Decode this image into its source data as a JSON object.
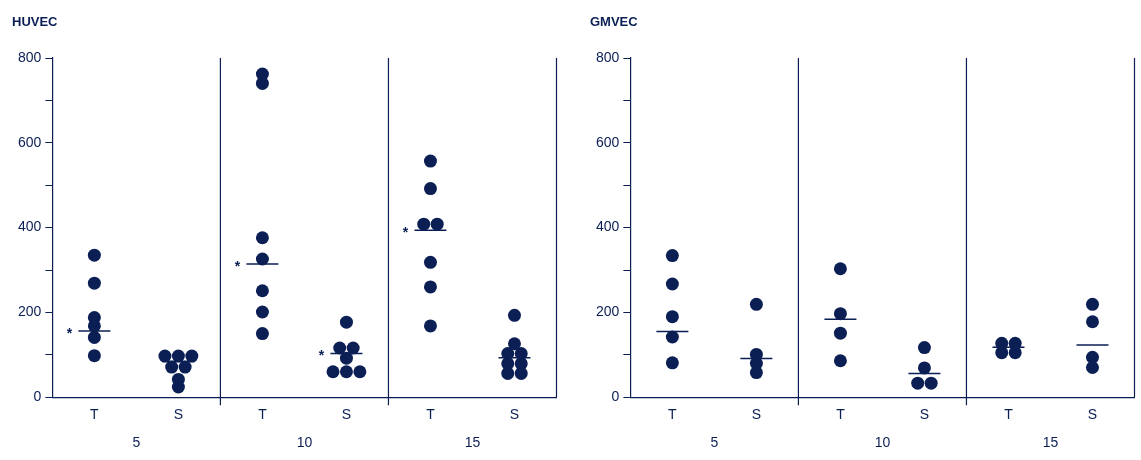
{
  "chart_data": [
    {
      "type": "scatter",
      "title": "HUVEC",
      "categories": [
        "T",
        "S",
        "T",
        "S",
        "T",
        "S"
      ],
      "ylim": [
        0,
        800
      ],
      "yticks": [
        0,
        {
          "value": 100,
          "label": null
        },
        200,
        {
          "value": 300,
          "label": null
        },
        400,
        {
          "value": 500,
          "label": null
        },
        600,
        {
          "value": 700,
          "label": null
        },
        800
      ],
      "series": [
        {
          "color": "#0b1f55",
          "marker": "circle",
          "values": [
            335,
            97,
            762,
            177,
            557,
            193
          ]
        },
        {
          "color": "#0b1f55",
          "marker": "circle",
          "values": [
            269,
            97,
            740,
            116,
            492,
            126
          ]
        },
        {
          "color": "#0b1f55",
          "marker": "circle",
          "values": [
            188,
            97,
            376,
            116,
            408,
            103
          ]
        },
        {
          "color": "#0b1f55",
          "marker": "circle",
          "values": [
            168,
            71,
            326,
            92,
            408,
            103
          ]
        },
        {
          "color": "#0b1f55",
          "marker": "circle",
          "values": [
            141,
            71,
            251,
            60,
            318,
            79
          ]
        },
        {
          "color": "#0b1f55",
          "marker": "circle",
          "values": [
            98,
            42,
            201,
            60,
            260,
            79
          ]
        },
        {
          "color": "#0b1f55",
          "marker": "circle",
          "values": [
            null,
            24,
            150,
            60,
            168,
            56
          ]
        },
        {
          "color": "#0b1f55",
          "marker": "circle",
          "values": [
            null,
            null,
            null,
            null,
            null,
            56
          ]
        },
        {
          "type": "box",
          "color": "#0b1f55",
          "boxes": [
            {
              "low": 156,
              "q1": 156,
              "median": 156,
              "q3": 156,
              "high": 156
            },
            {
              "low": 84,
              "q1": 84,
              "median": 84,
              "q3": 84,
              "high": 84
            },
            {
              "low": 314,
              "q1": 314,
              "median": 314,
              "q3": 314,
              "high": 314
            },
            {
              "low": 103,
              "q1": 103,
              "median": 103,
              "q3": 103,
              "high": 103
            },
            {
              "low": 394,
              "q1": 394,
              "median": 394,
              "q3": 394,
              "high": 394
            },
            {
              "low": 93,
              "q1": 93,
              "median": 93,
              "q3": 93,
              "high": 93
            }
          ],
          "value_labels": [
            "*",
            null,
            "*",
            "*",
            "*",
            null
          ]
        }
      ],
      "annotations": [
        "5",
        "10",
        "15"
      ]
    },
    {
      "type": "scatter",
      "title": "GMVEC",
      "categories": [
        "T",
        "S",
        "T",
        "S",
        "T",
        "S"
      ],
      "ylim": [
        0,
        800
      ],
      "yticks": [
        0,
        {
          "value": 100,
          "label": null
        },
        200,
        {
          "value": 300,
          "label": null
        },
        400,
        {
          "value": 500,
          "label": null
        },
        600,
        {
          "value": 700,
          "label": null
        },
        800
      ],
      "series": [
        {
          "color": "#0b1f55",
          "marker": "circle",
          "values": [
            334,
            219,
            303,
            117,
            127,
            219
          ]
        },
        {
          "color": "#0b1f55",
          "marker": "circle",
          "values": [
            267,
            101,
            197,
            69,
            127,
            178
          ]
        },
        {
          "color": "#0b1f55",
          "marker": "circle",
          "values": [
            190,
            80,
            151,
            33,
            105,
            94
          ]
        },
        {
          "color": "#0b1f55",
          "marker": "circle",
          "values": [
            142,
            58,
            86,
            33,
            105,
            70
          ]
        },
        {
          "color": "#0b1f55",
          "marker": "circle",
          "values": [
            81,
            null,
            null,
            null,
            null,
            null
          ]
        },
        {
          "type": "box",
          "color": "#0b1f55",
          "boxes": [
            {
              "low": 155,
              "q1": 155,
              "median": 155,
              "q3": 155,
              "high": 155
            },
            {
              "low": 91,
              "q1": 91,
              "median": 91,
              "q3": 91,
              "high": 91
            },
            {
              "low": 184,
              "q1": 184,
              "median": 184,
              "q3": 184,
              "high": 184
            },
            {
              "low": 56,
              "q1": 56,
              "median": 56,
              "q3": 56,
              "high": 56
            },
            {
              "low": 118,
              "q1": 118,
              "median": 118,
              "q3": 118,
              "high": 118
            },
            {
              "low": 123,
              "q1": 123,
              "median": 123,
              "q3": 123,
              "high": 123
            }
          ]
        }
      ],
      "annotations": [
        "5",
        "10",
        "15"
      ]
    }
  ]
}
